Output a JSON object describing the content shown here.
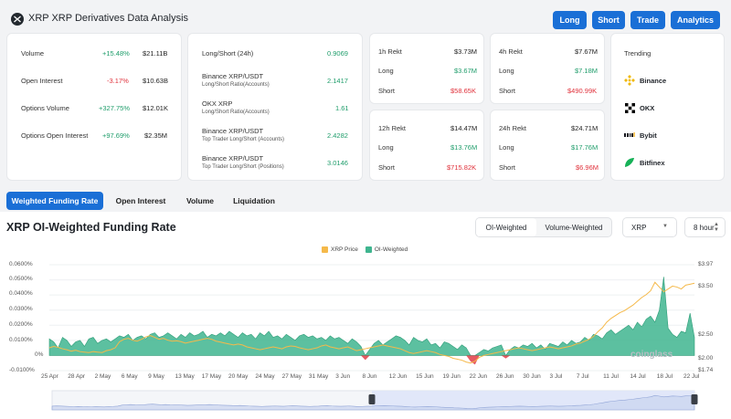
{
  "header": {
    "title": "XRP XRP Derivatives Data Analysis",
    "buttons": [
      "Long",
      "Short",
      "Trade",
      "Analytics"
    ]
  },
  "overview": [
    {
      "label": "Volume",
      "change": "+15.48%",
      "change_dir": "up",
      "value": "$21.11B"
    },
    {
      "label": "Open Interest",
      "change": "-3.17%",
      "change_dir": "down",
      "value": "$10.63B"
    },
    {
      "label": "Options Volume",
      "change": "+327.75%",
      "change_dir": "up",
      "value": "$12.01K"
    },
    {
      "label": "Options Open Interest",
      "change": "+97.69%",
      "change_dir": "up",
      "value": "$2.35M"
    }
  ],
  "ratios": [
    {
      "label": "Long/Short (24h)",
      "sub": "",
      "value": "0.9069"
    },
    {
      "label": "Binance XRP/USDT",
      "sub": "Long/Short Ratio(Accounts)",
      "value": "2.1417"
    },
    {
      "label": "OKX XRP",
      "sub": "Long/Short Ratio(Accounts)",
      "value": "1.61"
    },
    {
      "label": "Binance XRP/USDT",
      "sub": "Top Trader Long/Short (Accounts)",
      "value": "2.4282"
    },
    {
      "label": "Binance XRP/USDT",
      "sub": "Top Trader Long/Short (Positions)",
      "value": "3.0146"
    }
  ],
  "rekt": [
    {
      "period": "1h Rekt",
      "total": "$3.73M",
      "long_label": "Long",
      "long": "$3.67M",
      "short_label": "Short",
      "short": "$58.65K"
    },
    {
      "period": "4h Rekt",
      "total": "$7.67M",
      "long_label": "Long",
      "long": "$7.18M",
      "short_label": "Short",
      "short": "$490.99K"
    },
    {
      "period": "12h Rekt",
      "total": "$14.47M",
      "long_label": "Long",
      "long": "$13.76M",
      "short_label": "Short",
      "short": "$715.82K"
    },
    {
      "period": "24h Rekt",
      "total": "$24.71M",
      "long_label": "Long",
      "long": "$17.76M",
      "short_label": "Short",
      "short": "$6.96M"
    }
  ],
  "trending": {
    "title": "Trending",
    "items": [
      {
        "name": "Binance",
        "icon": "binance-icon",
        "color": "#f0b90b"
      },
      {
        "name": "OKX",
        "icon": "okx-icon",
        "color": "#000000"
      },
      {
        "name": "Bybit",
        "icon": "bybit-icon",
        "color": "#17181e"
      },
      {
        "name": "Bitfinex",
        "icon": "bitfinex-icon",
        "color": "#16b157"
      }
    ]
  },
  "tabs": [
    "Weighted Funding Rate",
    "Open Interest",
    "Volume",
    "Liquidation"
  ],
  "chart_panel": {
    "title": "XRP OI-Weighted Funding Rate",
    "toggle": [
      "OI-Weighted",
      "Volume-Weighted"
    ],
    "symbol_select": "XRP",
    "interval_select": "8 hour",
    "watermark": "coinglass"
  },
  "colors": {
    "accent": "#1a6fd6",
    "up": "#1f9d6b",
    "down": "#e0313b",
    "area": "#3fb58f",
    "price": "#f5b94a"
  },
  "chart_data": {
    "type": "area",
    "legend": [
      "XRP Price",
      "OI-Weighted"
    ],
    "x_ticks": [
      "25 Apr",
      "28 Apr",
      "2 May",
      "6 May",
      "9 May",
      "13 May",
      "17 May",
      "20 May",
      "24 May",
      "27 May",
      "31 May",
      "3 Jun",
      "8 Jun",
      "12 Jun",
      "15 Jun",
      "19 Jun",
      "22 Jun",
      "26 Jun",
      "30 Jun",
      "3 Jul",
      "7 Jul",
      "11 Jul",
      "14 Jul",
      "18 Jul",
      "22 Jul"
    ],
    "y_left_ticks": [
      "0.0600%",
      "0.0500%",
      "0.0400%",
      "0.0300%",
      "0.0200%",
      "0.0100%",
      "0%",
      "-0.0100%"
    ],
    "y_left_range": [
      -0.01,
      0.06
    ],
    "y_right_ticks": [
      "$3.97",
      "$3.50",
      "$2.50",
      "$2.00",
      "$1.74"
    ],
    "y_right_range": [
      1.74,
      3.97
    ],
    "series": [
      {
        "name": "OI-Weighted",
        "unit": "%",
        "values": [
          0.011,
          0.009,
          0.005,
          0.012,
          0.01,
          0.006,
          0.009,
          0.01,
          0.006,
          0.011,
          0.012,
          0.008,
          0.01,
          0.011,
          0.009,
          0.011,
          0.013,
          0.012,
          0.014,
          0.01,
          0.012,
          0.013,
          0.011,
          0.014,
          0.015,
          0.012,
          0.013,
          0.015,
          0.013,
          0.011,
          0.014,
          0.012,
          0.015,
          0.013,
          0.014,
          0.016,
          0.012,
          0.014,
          0.013,
          0.015,
          0.013,
          0.016,
          0.014,
          0.012,
          0.015,
          0.013,
          0.014,
          0.011,
          0.015,
          0.013,
          0.016,
          0.012,
          0.013,
          0.011,
          0.014,
          0.012,
          0.01,
          0.013,
          0.014,
          0.012,
          0.013,
          0.011,
          0.012,
          0.01,
          0.013,
          0.011,
          0.012,
          0.01,
          0.008,
          0.011,
          0.009,
          0.006,
          -0.003,
          0.004,
          0.008,
          0.01,
          0.007,
          0.009,
          0.011,
          0.013,
          0.012,
          0.01,
          0.007,
          0.012,
          0.01,
          0.009,
          0.011,
          0.007,
          0.008,
          0.005,
          0.009,
          0.008,
          0.006,
          0.004,
          0.007,
          0.005,
          -0.004,
          -0.006,
          0.002,
          0.004,
          0.003,
          0.005,
          0.006,
          0.007,
          -0.002,
          0.004,
          0.006,
          0.005,
          0.007,
          0.006,
          0.008,
          0.005,
          0.007,
          0.004,
          0.008,
          0.007,
          0.006,
          0.009,
          0.007,
          0.01,
          0.008,
          0.009,
          0.012,
          0.01,
          0.014,
          0.013,
          0.011,
          0.015,
          0.017,
          0.014,
          0.016,
          0.018,
          0.02,
          0.017,
          0.022,
          0.019,
          0.024,
          0.026,
          0.022,
          0.03,
          0.052,
          0.018,
          0.014,
          0.012,
          0.016,
          0.015,
          0.028,
          0.012
        ]
      },
      {
        "name": "XRP Price",
        "unit": "$",
        "values": [
          2.22,
          2.25,
          2.23,
          2.2,
          2.18,
          2.15,
          2.17,
          2.14,
          2.13,
          2.12,
          2.14,
          2.13,
          2.12,
          2.16,
          2.18,
          2.22,
          2.35,
          2.4,
          2.42,
          2.38,
          2.36,
          2.4,
          2.45,
          2.48,
          2.44,
          2.4,
          2.42,
          2.38,
          2.36,
          2.37,
          2.35,
          2.32,
          2.34,
          2.36,
          2.38,
          2.4,
          2.42,
          2.4,
          2.36,
          2.34,
          2.32,
          2.3,
          2.28,
          2.3,
          2.28,
          2.24,
          2.22,
          2.2,
          2.18,
          2.2,
          2.22,
          2.24,
          2.22,
          2.2,
          2.24,
          2.26,
          2.25,
          2.22,
          2.2,
          2.18,
          2.2,
          2.22,
          2.26,
          2.28,
          2.24,
          2.22,
          2.2,
          2.22,
          2.24,
          2.2,
          2.16,
          2.18,
          2.2,
          2.22,
          2.24,
          2.26,
          2.28,
          2.26,
          2.24,
          2.22,
          2.2,
          2.16,
          2.12,
          2.1,
          2.12,
          2.14,
          2.16,
          2.14,
          2.12,
          2.08,
          2.06,
          2.04,
          2.0,
          1.98,
          1.96,
          1.92,
          1.9,
          1.94,
          2.02,
          2.06,
          2.08,
          2.1,
          2.12,
          2.14,
          2.16,
          2.18,
          2.2,
          2.22,
          2.2,
          2.18,
          2.16,
          2.18,
          2.2,
          2.22,
          2.24,
          2.22,
          2.2,
          2.22,
          2.24,
          2.26,
          2.3,
          2.32,
          2.36,
          2.4,
          2.46,
          2.56,
          2.64,
          2.76,
          2.84,
          2.9,
          2.96,
          3.0,
          3.06,
          3.12,
          3.2,
          3.28,
          3.34,
          3.42,
          3.6,
          3.5,
          3.4,
          3.46,
          3.52,
          3.5,
          3.46,
          3.54,
          3.56,
          3.58
        ]
      }
    ]
  }
}
